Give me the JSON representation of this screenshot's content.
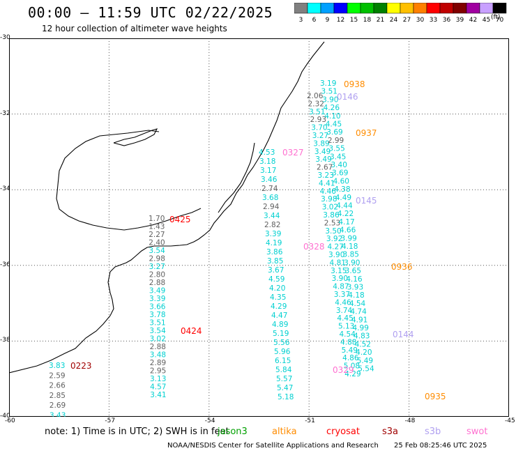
{
  "header": {
    "title": "00:00 – 11:59 UTC 02/22/2025",
    "subtitle": "12 hour collection of altimeter wave heights"
  },
  "colorbar": {
    "labels": [
      "3",
      "6",
      "9",
      "12",
      "15",
      "18",
      "21",
      "24",
      "27",
      "30",
      "33",
      "36",
      "39",
      "42",
      "45",
      "70"
    ],
    "unit": "(ft)",
    "colors": [
      "#808080",
      "#00ffff",
      "#00a0ff",
      "#0000ff",
      "#00ff00",
      "#00c000",
      "#008000",
      "#ffff00",
      "#ffc000",
      "#ff8000",
      "#ff0000",
      "#c00000",
      "#800000",
      "#a000a0",
      "#c8a0ff",
      "#000000"
    ]
  },
  "axes": {
    "lat_labels": [
      "-30",
      "-32",
      "-34",
      "-36",
      "-38",
      "-40"
    ],
    "lon_labels": [
      "-60",
      "-57",
      "-54",
      "-51",
      "-48",
      "-45"
    ]
  },
  "pass_times": [
    {
      "text": "0938",
      "color": "#ff8c00"
    },
    {
      "text": "0146",
      "color": "#b0a0f0"
    },
    {
      "text": "0937",
      "color": "#ff8c00"
    },
    {
      "text": "0327",
      "color": "#ff70d0"
    },
    {
      "text": "0145",
      "color": "#b0a0f0"
    },
    {
      "text": "0425",
      "color": "#ff0000"
    },
    {
      "text": "0328",
      "color": "#ff70d0"
    },
    {
      "text": "0936",
      "color": "#ff8c00"
    },
    {
      "text": "0424",
      "color": "#ff0000"
    },
    {
      "text": "0144",
      "color": "#b0a0f0"
    },
    {
      "text": "0223",
      "color": "#a00000"
    },
    {
      "text": "0329",
      "color": "#ff70d0"
    },
    {
      "text": "0935",
      "color": "#ff8c00"
    }
  ],
  "tracks": {
    "t0223": [
      {
        "v": "3.83",
        "c": "#00d0d0"
      },
      {
        "v": "2.59",
        "c": "#606060"
      },
      {
        "v": "2.66",
        "c": "#606060"
      },
      {
        "v": "2.85",
        "c": "#606060"
      },
      {
        "v": "2.69",
        "c": "#606060"
      },
      {
        "v": "3.43",
        "c": "#00d0d0"
      }
    ],
    "t0425": [
      {
        "v": "1.70",
        "c": "#606060"
      },
      {
        "v": "1.43",
        "c": "#606060"
      },
      {
        "v": "2.27",
        "c": "#606060"
      },
      {
        "v": "2.40",
        "c": "#606060"
      },
      {
        "v": "3.54",
        "c": "#00d0d0"
      },
      {
        "v": "2.98",
        "c": "#606060"
      },
      {
        "v": "3.27",
        "c": "#00d0d0"
      },
      {
        "v": "2.80",
        "c": "#606060"
      },
      {
        "v": "2.88",
        "c": "#606060"
      },
      {
        "v": "3.49",
        "c": "#00d0d0"
      },
      {
        "v": "3.39",
        "c": "#00d0d0"
      },
      {
        "v": "3.66",
        "c": "#00d0d0"
      },
      {
        "v": "3.78",
        "c": "#00d0d0"
      },
      {
        "v": "3.51",
        "c": "#00d0d0"
      },
      {
        "v": "3.54",
        "c": "#00d0d0"
      },
      {
        "v": "3.02",
        "c": "#00d0d0"
      },
      {
        "v": "2.88",
        "c": "#606060"
      },
      {
        "v": "3.48",
        "c": "#00d0d0"
      },
      {
        "v": "2.89",
        "c": "#606060"
      },
      {
        "v": "2.95",
        "c": "#606060"
      },
      {
        "v": "3.13",
        "c": "#00d0d0"
      },
      {
        "v": "4.57",
        "c": "#00d0d0"
      },
      {
        "v": "3.41",
        "c": "#00d0d0"
      }
    ],
    "t0328": [
      {
        "v": "4.53",
        "c": "#00d0d0"
      },
      {
        "v": "3.18",
        "c": "#00d0d0"
      },
      {
        "v": "3.17",
        "c": "#00d0d0"
      },
      {
        "v": "3.46",
        "c": "#00d0d0"
      },
      {
        "v": "2.74",
        "c": "#606060"
      },
      {
        "v": "3.68",
        "c": "#00d0d0"
      },
      {
        "v": "2.94",
        "c": "#606060"
      },
      {
        "v": "3.44",
        "c": "#00d0d0"
      },
      {
        "v": "2.82",
        "c": "#606060"
      },
      {
        "v": "3.39",
        "c": "#00d0d0"
      },
      {
        "v": "4.19",
        "c": "#00d0d0"
      },
      {
        "v": "3.86",
        "c": "#00d0d0"
      },
      {
        "v": "3.85",
        "c": "#00d0d0"
      },
      {
        "v": "3.67",
        "c": "#00d0d0"
      },
      {
        "v": "4.59",
        "c": "#00d0d0"
      },
      {
        "v": "4.20",
        "c": "#00d0d0"
      },
      {
        "v": "4.35",
        "c": "#00d0d0"
      },
      {
        "v": "4.29",
        "c": "#00d0d0"
      },
      {
        "v": "4.47",
        "c": "#00d0d0"
      },
      {
        "v": "4.89",
        "c": "#00d0d0"
      },
      {
        "v": "5.19",
        "c": "#00d0d0"
      },
      {
        "v": "5.56",
        "c": "#00d0d0"
      },
      {
        "v": "5.96",
        "c": "#00d0d0"
      },
      {
        "v": "6.15",
        "c": "#00d0d0"
      },
      {
        "v": "5.84",
        "c": "#00d0d0"
      },
      {
        "v": "5.57",
        "c": "#00d0d0"
      },
      {
        "v": "5.47",
        "c": "#00d0d0"
      },
      {
        "v": "5.18",
        "c": "#00d0d0"
      }
    ],
    "t0146": [
      {
        "v": "2.06",
        "c": "#606060"
      },
      {
        "v": "2.32",
        "c": "#606060"
      },
      {
        "v": "3.51",
        "c": "#00d0d0"
      },
      {
        "v": "2.93",
        "c": "#606060"
      },
      {
        "v": "3.70",
        "c": "#00d0d0"
      },
      {
        "v": "3.27",
        "c": "#00d0d0"
      },
      {
        "v": "3.89",
        "c": "#00d0d0"
      },
      {
        "v": "3.49",
        "c": "#00d0d0"
      },
      {
        "v": "3.49",
        "c": "#00d0d0"
      },
      {
        "v": "2.67",
        "c": "#606060"
      },
      {
        "v": "3.23",
        "c": "#00d0d0"
      },
      {
        "v": "4.41",
        "c": "#00d0d0"
      },
      {
        "v": "4.46",
        "c": "#00d0d0"
      },
      {
        "v": "3.98",
        "c": "#00d0d0"
      },
      {
        "v": "3.02",
        "c": "#00d0d0"
      },
      {
        "v": "3.86",
        "c": "#00d0d0"
      },
      {
        "v": "2.53",
        "c": "#606060"
      },
      {
        "v": "3.50",
        "c": "#00d0d0"
      },
      {
        "v": "3.92",
        "c": "#00d0d0"
      },
      {
        "v": "4.27",
        "c": "#00d0d0"
      },
      {
        "v": "3.90",
        "c": "#00d0d0"
      },
      {
        "v": "4.81",
        "c": "#00d0d0"
      },
      {
        "v": "3.15",
        "c": "#00d0d0"
      },
      {
        "v": "3.90",
        "c": "#00d0d0"
      },
      {
        "v": "4.87",
        "c": "#00d0d0"
      },
      {
        "v": "3.37",
        "c": "#00d0d0"
      },
      {
        "v": "4.46",
        "c": "#00d0d0"
      },
      {
        "v": "3.74",
        "c": "#00d0d0"
      },
      {
        "v": "4.45",
        "c": "#00d0d0"
      },
      {
        "v": "5.13",
        "c": "#00d0d0"
      },
      {
        "v": "4.54",
        "c": "#00d0d0"
      },
      {
        "v": "4.88",
        "c": "#00d0d0"
      },
      {
        "v": "5.49",
        "c": "#00d0d0"
      },
      {
        "v": "4.86",
        "c": "#00d0d0"
      },
      {
        "v": "5.08",
        "c": "#00d0d0"
      },
      {
        "v": "4.29",
        "c": "#00d0d0"
      }
    ],
    "t0938": [
      {
        "v": "3.19",
        "c": "#00d0d0"
      },
      {
        "v": "3.51",
        "c": "#00d0d0"
      },
      {
        "v": "3.90",
        "c": "#00d0d0"
      },
      {
        "v": "4.26",
        "c": "#00d0d0"
      },
      {
        "v": "4.10",
        "c": "#00d0d0"
      },
      {
        "v": "4.45",
        "c": "#00d0d0"
      },
      {
        "v": "3.69",
        "c": "#00d0d0"
      },
      {
        "v": "2.99",
        "c": "#606060"
      },
      {
        "v": "3.55",
        "c": "#00d0d0"
      },
      {
        "v": "3.45",
        "c": "#00d0d0"
      },
      {
        "v": "3.40",
        "c": "#00d0d0"
      },
      {
        "v": "3.69",
        "c": "#00d0d0"
      },
      {
        "v": "4.60",
        "c": "#00d0d0"
      },
      {
        "v": "4.38",
        "c": "#00d0d0"
      },
      {
        "v": "4.49",
        "c": "#00d0d0"
      },
      {
        "v": "4.44",
        "c": "#00d0d0"
      },
      {
        "v": "4.22",
        "c": "#00d0d0"
      },
      {
        "v": "4.17",
        "c": "#00d0d0"
      },
      {
        "v": "4.66",
        "c": "#00d0d0"
      },
      {
        "v": "3.99",
        "c": "#00d0d0"
      },
      {
        "v": "4.18",
        "c": "#00d0d0"
      },
      {
        "v": "3.85",
        "c": "#00d0d0"
      },
      {
        "v": "3.90",
        "c": "#00d0d0"
      },
      {
        "v": "3.65",
        "c": "#00d0d0"
      },
      {
        "v": "4.16",
        "c": "#00d0d0"
      },
      {
        "v": "3.93",
        "c": "#00d0d0"
      },
      {
        "v": "4.18",
        "c": "#00d0d0"
      },
      {
        "v": "4.54",
        "c": "#00d0d0"
      },
      {
        "v": "4.74",
        "c": "#00d0d0"
      },
      {
        "v": "4.91",
        "c": "#00d0d0"
      },
      {
        "v": "4.99",
        "c": "#00d0d0"
      },
      {
        "v": "4.83",
        "c": "#00d0d0"
      },
      {
        "v": "4.52",
        "c": "#00d0d0"
      },
      {
        "v": "4.20",
        "c": "#00d0d0"
      },
      {
        "v": "5.49",
        "c": "#00d0d0"
      },
      {
        "v": "5.54",
        "c": "#00d0d0"
      }
    ]
  },
  "footer": {
    "note": "note:  1) Time is in UTC; 2) SWH is in feet",
    "satellites": [
      {
        "name": "jason3",
        "color": "#00a000"
      },
      {
        "name": "altika",
        "color": "#ff8c00"
      },
      {
        "name": "cryosat",
        "color": "#ff0000"
      },
      {
        "name": "s3a",
        "color": "#a00000"
      },
      {
        "name": "s3b",
        "color": "#b0a0f0"
      },
      {
        "name": "swot",
        "color": "#ff70d0"
      }
    ],
    "credit": "NOAA/NESDIS Center for Satellite Applications and Research",
    "timestamp": "25 Feb 08:25:46 UTC 2025"
  }
}
